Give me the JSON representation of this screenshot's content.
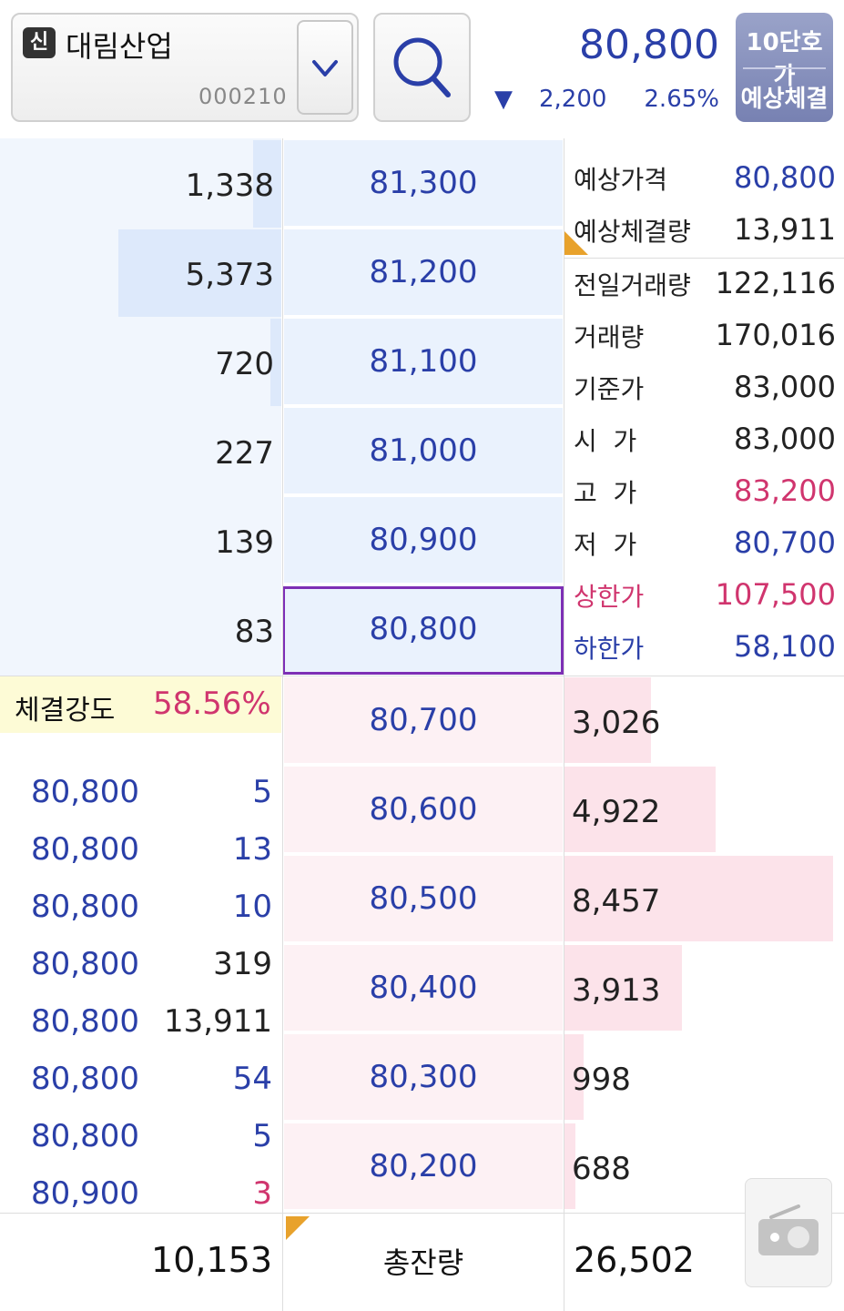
{
  "header": {
    "badge": "신",
    "stock_name": "대림산업",
    "stock_code": "000210",
    "current_price": "80,800",
    "change_arrow": "▼",
    "change_amount": "2,200",
    "change_percent": "2.65%",
    "mode_top": "10단호가",
    "mode_bottom": "예상체결"
  },
  "asks": [
    {
      "qty": "1,338",
      "price": "81,300",
      "bar_fraction": 0.1
    },
    {
      "qty": "5,373",
      "price": "81,200",
      "bar_fraction": 0.58
    },
    {
      "qty": "720",
      "price": "81,100",
      "bar_fraction": 0.04
    },
    {
      "qty": "227",
      "price": "81,000",
      "bar_fraction": 0.0
    },
    {
      "qty": "139",
      "price": "80,900",
      "bar_fraction": 0.0
    },
    {
      "qty": "83",
      "price": "80,800",
      "bar_fraction": 0.0
    }
  ],
  "bids": [
    {
      "price": "80,700",
      "qty": "3,026",
      "bar_fraction": 0.31
    },
    {
      "price": "80,600",
      "qty": "4,922",
      "bar_fraction": 0.54
    },
    {
      "price": "80,500",
      "qty": "8,457",
      "bar_fraction": 0.96
    },
    {
      "price": "80,400",
      "qty": "3,913",
      "bar_fraction": 0.42
    },
    {
      "price": "80,300",
      "qty": "998",
      "bar_fraction": 0.07
    },
    {
      "price": "80,200",
      "qty": "688",
      "bar_fraction": 0.04
    }
  ],
  "info": [
    {
      "label": "예상가격",
      "value": "80,800",
      "color": "#2a3fa8"
    },
    {
      "label": "예상체결량",
      "value": "13,911",
      "color": "#222222"
    },
    {
      "label": "전일거래량",
      "value": "122,116",
      "color": "#222222"
    },
    {
      "label": "거래량",
      "value": "170,016",
      "color": "#222222"
    },
    {
      "label": "기준가",
      "value": "83,000",
      "color": "#222222"
    },
    {
      "label": "시  가",
      "value": "83,000",
      "color": "#222222"
    },
    {
      "label": "고  가",
      "value": "83,200",
      "color": "#d0356e"
    },
    {
      "label": "저  가",
      "value": "80,700",
      "color": "#2a3fa8"
    },
    {
      "label": "상한가",
      "value": "107,500",
      "color": "#d0356e",
      "label_color": "#d0356e"
    },
    {
      "label": "하한가",
      "value": "58,100",
      "color": "#2a3fa8",
      "label_color": "#2a3fa8"
    }
  ],
  "strength": {
    "label": "체결강도",
    "value": "58.56%"
  },
  "trades": [
    {
      "price": "80,800",
      "qty": "5",
      "qty_color": "#2a3fa8"
    },
    {
      "price": "80,800",
      "qty": "13",
      "qty_color": "#2a3fa8"
    },
    {
      "price": "80,800",
      "qty": "10",
      "qty_color": "#2a3fa8"
    },
    {
      "price": "80,800",
      "qty": "319",
      "qty_color": "#222222"
    },
    {
      "price": "80,800",
      "qty": "13,911",
      "qty_color": "#222222"
    },
    {
      "price": "80,800",
      "qty": "54",
      "qty_color": "#2a3fa8"
    },
    {
      "price": "80,800",
      "qty": "5",
      "qty_color": "#2a3fa8"
    },
    {
      "price": "80,900",
      "qty": "3",
      "qty_color": "#d0356e"
    }
  ],
  "totals": {
    "ask_total": "10,153",
    "label": "총잔량",
    "bid_total": "26,502"
  },
  "icons": {
    "dropdown": "chevron-down-icon",
    "search": "search-icon",
    "radio": "radio-icon"
  },
  "colors": {
    "blue": "#2a3fa8",
    "red": "#d0356e",
    "current_border": "#7d2fb5"
  }
}
